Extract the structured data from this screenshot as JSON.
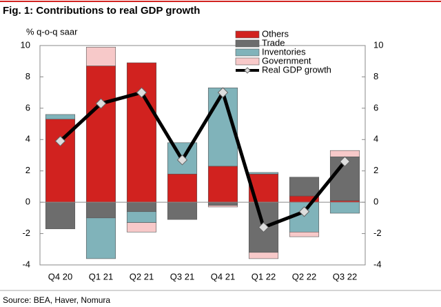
{
  "chart_data": {
    "type": "stacked_bar_line",
    "title": "Fig. 1: Contributions to real GDP growth",
    "y_label": "% q-o-q saar",
    "source": "Source: BEA, Haver, Nomura",
    "categories": [
      "Q4 20",
      "Q1 21",
      "Q2 21",
      "Q3 21",
      "Q4 21",
      "Q1 22",
      "Q2 22",
      "Q3 22"
    ],
    "series": [
      {
        "name": "Others",
        "color": "#d1221f",
        "values": [
          5.3,
          8.7,
          8.9,
          1.8,
          2.3,
          1.8,
          0.4,
          0.1
        ]
      },
      {
        "name": "Trade",
        "color": "#6d6d6d",
        "values": [
          -1.7,
          -1.0,
          -0.6,
          -1.1,
          -0.2,
          -3.2,
          1.2,
          2.8
        ]
      },
      {
        "name": "Inventories",
        "color": "#80b3ba",
        "values": [
          0.3,
          -2.6,
          -0.7,
          2.0,
          5.0,
          0.1,
          -1.9,
          -0.7
        ]
      },
      {
        "name": "Government",
        "color": "#f7c9c9",
        "values": [
          0,
          1.2,
          -0.6,
          0,
          -0.1,
          -0.4,
          -0.3,
          0.4
        ]
      }
    ],
    "line": {
      "name": "Real GDP growth",
      "color": "#000000",
      "values": [
        3.9,
        6.3,
        7.0,
        2.7,
        7.0,
        -1.6,
        -0.6,
        2.6
      ]
    },
    "ylim": [
      -4,
      10
    ],
    "yticks": [
      -4,
      -2,
      0,
      2,
      4,
      6,
      8,
      10
    ],
    "y2lim": [
      -4,
      10
    ],
    "y2ticks": [
      -4,
      -2,
      0,
      2,
      4,
      6,
      8,
      10
    ]
  }
}
